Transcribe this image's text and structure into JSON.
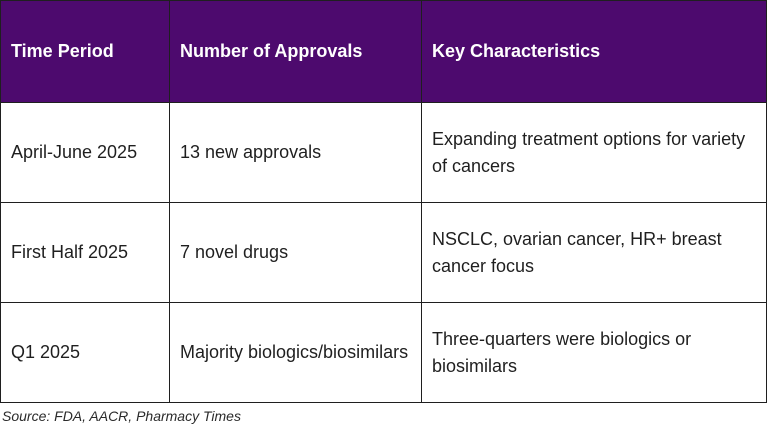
{
  "table": {
    "headers": [
      "Time Period",
      "Number of Approvals",
      "Key Characteristics"
    ],
    "rows": [
      [
        "April-June 2025",
        "13 new approvals",
        "Expanding treatment options for variety of cancers"
      ],
      [
        "First Half 2025",
        "7 novel drugs",
        "NSCLC, ovarian cancer, HR+ breast cancer focus"
      ],
      [
        "Q1 2025",
        "Majority biologics/biosimilars",
        "Three-quarters were biologics or biosimilars"
      ]
    ]
  },
  "source": "Source: FDA, AACR, Pharmacy Times",
  "colors": {
    "header_bg": "#4d0a6e",
    "header_text": "#ffffff",
    "border": "#1f1f1f"
  }
}
